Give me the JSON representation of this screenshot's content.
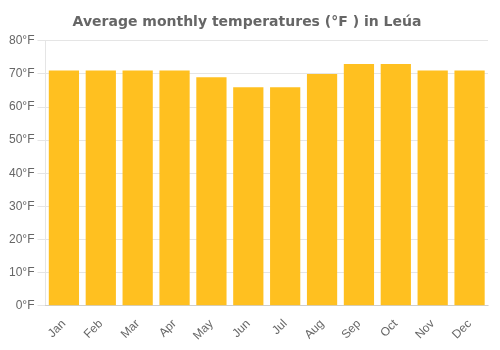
{
  "chart_data": {
    "type": "bar",
    "title": "Average monthly temperatures (°F ) in Leúa",
    "categories": [
      "Jan",
      "Feb",
      "Mar",
      "Apr",
      "May",
      "Jun",
      "Jul",
      "Aug",
      "Sep",
      "Oct",
      "Nov",
      "Dec"
    ],
    "values": [
      71,
      71,
      71,
      71,
      69,
      66,
      66,
      70,
      73,
      73,
      71,
      71
    ],
    "color": "#FFC020",
    "ylim": [
      0,
      80
    ],
    "yticks": [
      {
        "value": 0,
        "label": "0°F"
      },
      {
        "value": 10,
        "label": "10°F"
      },
      {
        "value": 20,
        "label": "20°F"
      },
      {
        "value": 30,
        "label": "30°F"
      },
      {
        "value": 40,
        "label": "40°F"
      },
      {
        "value": 50,
        "label": "50°F"
      },
      {
        "value": 60,
        "label": "60°F"
      },
      {
        "value": 70,
        "label": "70°F"
      },
      {
        "value": 80,
        "label": "80°F"
      }
    ],
    "grid": true
  }
}
